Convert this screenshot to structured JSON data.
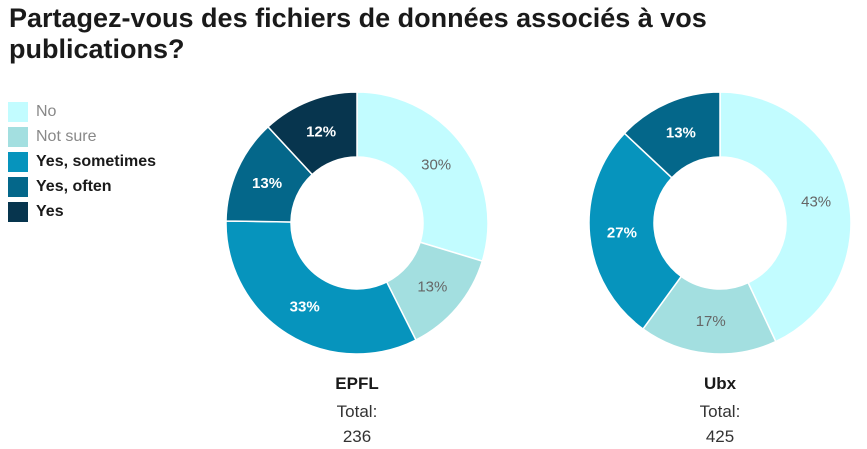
{
  "title": "Partagez-vous des fichiers de données associés à vos publications?",
  "legend": [
    {
      "label": "No",
      "color": "#c2fcff",
      "text_style": "light"
    },
    {
      "label": "Not sure",
      "color": "#a3dfe0",
      "text_style": "light"
    },
    {
      "label": "Yes, sometimes",
      "color": "#0694bd",
      "text_style": "dark"
    },
    {
      "label": "Yes, often",
      "color": "#04678a",
      "text_style": "dark"
    },
    {
      "label": "Yes",
      "color": "#07354e",
      "text_style": "dark"
    }
  ],
  "chart_data": [
    {
      "type": "pie",
      "name": "EPFL",
      "total_label": "Total:",
      "total": "236",
      "categories": [
        "No",
        "Not sure",
        "Yes, sometimes",
        "Yes, often",
        "Yes"
      ],
      "values": [
        30,
        13,
        33,
        13,
        12
      ],
      "labels": [
        "30%",
        "13%",
        "33%",
        "13%",
        "12%"
      ]
    },
    {
      "type": "pie",
      "name": "Ubx",
      "total_label": "Total:",
      "total": "425",
      "categories": [
        "No",
        "Not sure",
        "Yes, sometimes",
        "Yes, often"
      ],
      "values": [
        43,
        17,
        27,
        13
      ],
      "labels": [
        "43%",
        "17%",
        "27%",
        "13%"
      ]
    }
  ]
}
